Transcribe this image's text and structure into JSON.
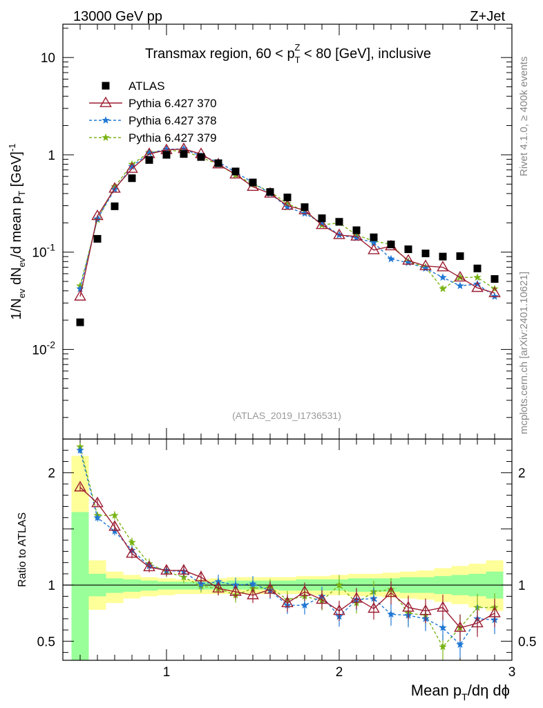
{
  "header": {
    "left": "13000 GeV pp",
    "right": "Z+Jet"
  },
  "side_text": {
    "top": "Rivet 4.1.0, ≥ 400k events",
    "bottom": "mcplots.cern.ch [arXiv:2401.10621]"
  },
  "chart_data": {
    "type": "scatter",
    "title": "Transmax region, 60 < p_T^Z < 80 [GeV], inclusive",
    "title_parts": {
      "pre": "Transmax region, 60 < p",
      "sub": "T",
      "sup": "Z",
      "post": " < 80 [GeV], inclusive"
    },
    "analysis_tag": "(ATLAS_2019_I1736531)",
    "xlabel": "Mean p_T/dη dϕ",
    "xlabel_parts": {
      "pre": "Mean p",
      "sub": "T",
      "post": "/dη dϕ"
    },
    "ylabel": "1/N_ev dN_ev/d mean p_T [GeV]^-1",
    "ylabel_parts": {
      "a": "1/N",
      "a_sub": "ev",
      "b": " dN",
      "b_sub": "ev",
      "c": "/d mean p",
      "c_sub": "T",
      "d": " [GeV]",
      "d_sup": "-1"
    },
    "ratio_ylabel": "Ratio to ATLAS",
    "xlim": [
      0.4,
      3.0
    ],
    "main_ylim": [
      0.0012,
      22
    ],
    "main_yscale": "log",
    "ratio_ylim": [
      0.33,
      2.3
    ],
    "x_ticks": [
      "1",
      "2",
      "3"
    ],
    "main_y_ticks": [
      {
        "base": "10",
        "exp": "-2"
      },
      {
        "base": "10",
        "exp": "-1"
      },
      {
        "base": "1",
        "exp": ""
      },
      {
        "base": "10",
        "exp": ""
      }
    ],
    "ratio_y_ticks": [
      "0.5",
      "1",
      "2"
    ],
    "x": [
      0.5,
      0.6,
      0.7,
      0.8,
      0.9,
      1.0,
      1.1,
      1.2,
      1.3,
      1.4,
      1.5,
      1.6,
      1.7,
      1.8,
      1.9,
      2.0,
      2.1,
      2.2,
      2.3,
      2.4,
      2.5,
      2.6,
      2.7,
      2.8,
      2.9
    ],
    "series": [
      {
        "name": "ATLAS",
        "color": "#000000",
        "marker": "square",
        "values": [
          0.019,
          0.137,
          0.296,
          0.575,
          0.885,
          1.0,
          1.02,
          0.95,
          0.82,
          0.675,
          0.52,
          0.415,
          0.365,
          0.29,
          0.223,
          0.205,
          0.168,
          0.142,
          0.12,
          0.107,
          0.097,
          0.09,
          0.091,
          0.068,
          0.053
        ],
        "ratio": [
          1.0,
          1.0,
          1.0,
          1.0,
          1.0,
          1.0,
          1.0,
          1.0,
          1.0,
          1.0,
          1.0,
          1.0,
          1.0,
          1.0,
          1.0,
          1.0,
          1.0,
          1.0,
          1.0,
          1.0,
          1.0,
          1.0,
          1.0,
          1.0,
          1.0
        ]
      },
      {
        "name": "Pythia 6.427 370",
        "color": "#9b1b30",
        "marker": "open-triangle",
        "line": "solid",
        "values": [
          0.035,
          0.235,
          0.45,
          0.72,
          1.02,
          1.12,
          1.15,
          1.02,
          0.8,
          0.63,
          0.47,
          0.4,
          0.3,
          0.27,
          0.19,
          0.15,
          0.145,
          0.105,
          0.115,
          0.082,
          0.072,
          0.07,
          0.055,
          0.043,
          0.038
        ],
        "ratio": [
          1.87,
          1.73,
          1.52,
          1.28,
          1.16,
          1.13,
          1.13,
          1.07,
          0.97,
          0.94,
          0.91,
          0.96,
          0.84,
          0.94,
          0.87,
          0.77,
          0.88,
          0.79,
          0.93,
          0.8,
          0.77,
          0.8,
          0.62,
          0.66,
          0.75
        ]
      },
      {
        "name": "Pythia 6.427 378",
        "color": "#1f77d4",
        "marker": "star",
        "line": "dashed",
        "values": [
          0.042,
          0.22,
          0.44,
          0.76,
          1.04,
          1.14,
          1.15,
          0.97,
          0.85,
          0.66,
          0.52,
          0.4,
          0.29,
          0.25,
          0.2,
          0.15,
          0.14,
          0.125,
          0.085,
          0.078,
          0.068,
          0.055,
          0.045,
          0.047,
          0.035
        ],
        "ratio": [
          2.2,
          1.6,
          1.48,
          1.31,
          1.17,
          1.13,
          1.12,
          1.01,
          1.03,
          1.0,
          1.01,
          0.95,
          0.82,
          0.82,
          0.9,
          0.72,
          0.87,
          0.88,
          0.74,
          0.73,
          0.7,
          0.62,
          0.47,
          0.7,
          0.69
        ]
      },
      {
        "name": "Pythia 6.427 379",
        "color": "#7ab317",
        "marker": "star",
        "line": "dashed",
        "values": [
          0.045,
          0.215,
          0.47,
          0.8,
          1.06,
          1.1,
          1.1,
          0.94,
          0.8,
          0.62,
          0.5,
          0.42,
          0.315,
          0.265,
          0.19,
          0.2,
          0.15,
          0.13,
          0.12,
          0.08,
          0.07,
          0.042,
          0.055,
          0.055,
          0.042
        ],
        "ratio": [
          2.23,
          1.62,
          1.62,
          1.38,
          1.19,
          1.12,
          1.07,
          0.99,
          0.97,
          0.91,
          0.97,
          0.98,
          0.87,
          0.9,
          0.86,
          1.0,
          0.84,
          0.94,
          0.96,
          0.75,
          0.73,
          0.45,
          0.62,
          0.8,
          0.8
        ]
      }
    ],
    "ratio_bands": {
      "outer_color": "#ffff99",
      "inner_color": "#99ff99",
      "x_edges": [
        0.45,
        0.55,
        0.65,
        0.75,
        0.85,
        0.95,
        1.05,
        1.15,
        1.25,
        1.35,
        1.45,
        1.55,
        1.65,
        1.75,
        1.85,
        1.95,
        2.05,
        2.15,
        2.25,
        2.35,
        2.45,
        2.55,
        2.65,
        2.75,
        2.85,
        2.95
      ],
      "outer_lo": [
        0.5,
        0.78,
        0.84,
        0.88,
        0.9,
        0.91,
        0.92,
        0.92,
        0.92,
        0.92,
        0.92,
        0.92,
        0.92,
        0.92,
        0.91,
        0.91,
        0.9,
        0.9,
        0.89,
        0.88,
        0.87,
        0.85,
        0.83,
        0.8,
        0.77
      ],
      "outer_hi": [
        2.15,
        1.22,
        1.12,
        1.09,
        1.07,
        1.06,
        1.05,
        1.05,
        1.06,
        1.07,
        1.07,
        1.07,
        1.07,
        1.08,
        1.08,
        1.09,
        1.1,
        1.1,
        1.11,
        1.12,
        1.13,
        1.15,
        1.17,
        1.19,
        1.22
      ],
      "inner_lo": [
        0.33,
        0.9,
        0.93,
        0.94,
        0.95,
        0.96,
        0.96,
        0.96,
        0.96,
        0.96,
        0.96,
        0.96,
        0.95,
        0.95,
        0.95,
        0.95,
        0.94,
        0.94,
        0.94,
        0.93,
        0.93,
        0.92,
        0.91,
        0.9,
        0.88
      ],
      "inner_hi": [
        1.65,
        1.1,
        1.06,
        1.05,
        1.04,
        1.03,
        1.03,
        1.03,
        1.03,
        1.04,
        1.04,
        1.04,
        1.04,
        1.05,
        1.05,
        1.05,
        1.06,
        1.06,
        1.06,
        1.07,
        1.07,
        1.08,
        1.09,
        1.1,
        1.12
      ]
    }
  }
}
